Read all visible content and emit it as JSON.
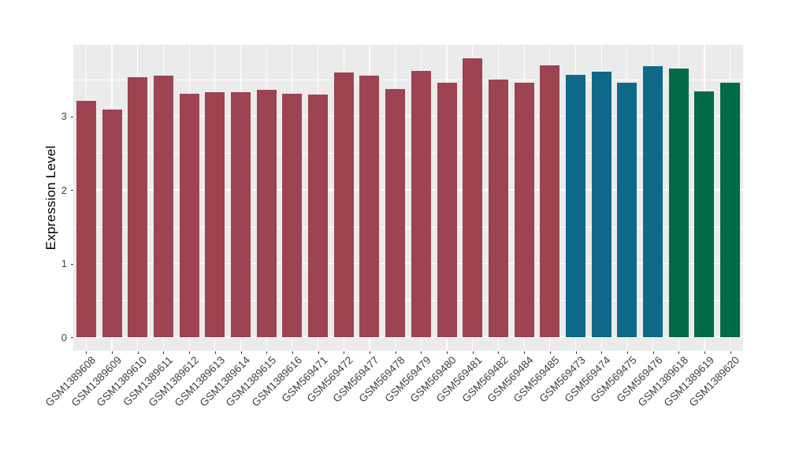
{
  "figure": {
    "background_color": "#FFFFFF",
    "panel_color": "#EBEBEB",
    "grid_color": "#FFFFFF",
    "axis_text_color": "#404040",
    "tick_mark_color": "#333333"
  },
  "chart_data": {
    "type": "bar",
    "title": "",
    "xlabel": "",
    "ylabel": "Expression Level",
    "ylim": [
      0,
      3.97
    ],
    "yticks": [
      0,
      1,
      2,
      3
    ],
    "yticks_minor": [
      0.5,
      1.5,
      2.5,
      3.5
    ],
    "grid": true,
    "legend": false,
    "categories": [
      "GSM1389608",
      "GSM1389609",
      "GSM1389610",
      "GSM1389611",
      "GSM1389612",
      "GSM1389613",
      "GSM1389614",
      "GSM1389615",
      "GSM1389616",
      "GSM569471",
      "GSM569472",
      "GSM569477",
      "GSM569478",
      "GSM569479",
      "GSM569480",
      "GSM569481",
      "GSM569482",
      "GSM569484",
      "GSM569485",
      "GSM569473",
      "GSM569474",
      "GSM569475",
      "GSM569476",
      "GSM1389618",
      "GSM1389619",
      "GSM1389620"
    ],
    "values": [
      3.21,
      3.09,
      3.53,
      3.55,
      3.3,
      3.33,
      3.33,
      3.36,
      3.31,
      3.29,
      3.59,
      3.55,
      3.37,
      3.61,
      3.45,
      3.79,
      3.5,
      3.45,
      3.69,
      3.56,
      3.6,
      3.46,
      3.68,
      3.65,
      3.34,
      3.46
    ],
    "bar_groups": [
      "red",
      "red",
      "red",
      "red",
      "red",
      "red",
      "red",
      "red",
      "red",
      "red",
      "red",
      "red",
      "red",
      "red",
      "red",
      "red",
      "red",
      "red",
      "red",
      "blue",
      "blue",
      "blue",
      "blue",
      "green",
      "green",
      "green"
    ],
    "group_colors": {
      "red": "#9D4352",
      "blue": "#0E6989",
      "green": "#016A49"
    }
  }
}
